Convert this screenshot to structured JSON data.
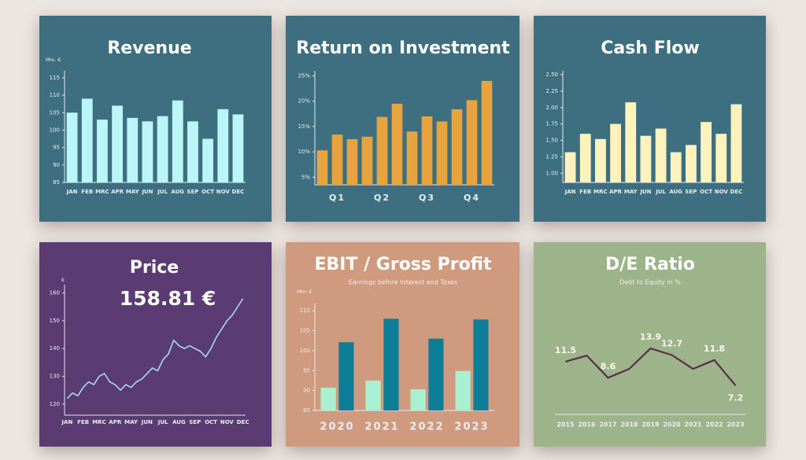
{
  "chart_data": [
    {
      "type": "bar",
      "title": "Revenue",
      "y_label": "Mio. €",
      "color": "#baf5f8",
      "categories": [
        "JAN",
        "FEB",
        "MRC",
        "APR",
        "MAY",
        "JUN",
        "JUL",
        "AUG",
        "SEP",
        "OCT",
        "NOV",
        "DEC"
      ],
      "values": [
        105,
        109,
        103,
        107,
        103.5,
        102.5,
        104,
        108.5,
        102.5,
        97.5,
        106,
        104.5
      ],
      "ylim": [
        85,
        117
      ],
      "yticks": [
        85,
        90,
        95,
        100,
        105,
        110,
        115
      ]
    },
    {
      "type": "bar",
      "title": "Return on Investment",
      "color": "#e6a33e",
      "categories": [
        null,
        "Q1",
        null,
        null,
        "Q2",
        null,
        null,
        "Q3",
        null,
        null,
        "Q4",
        null
      ],
      "values": [
        10.3,
        13.4,
        12.5,
        13,
        16.9,
        19.5,
        14,
        17,
        16,
        18.4,
        20.2,
        24
      ],
      "ylim": [
        3.5,
        26
      ],
      "yticks": [
        {
          "value": 5,
          "label": "5%"
        },
        {
          "value": 10,
          "label": "10%"
        },
        {
          "value": 15,
          "label": "15%"
        },
        {
          "value": 20,
          "label": "20%"
        },
        {
          "value": 25,
          "label": "25%"
        }
      ]
    },
    {
      "type": "bar",
      "title": "Cash Flow",
      "color": "#fff2bd",
      "categories": [
        "JAN",
        "FEB",
        "MRC",
        "APR",
        "MAY",
        "JUN",
        "JUL",
        "AUG",
        "SEP",
        "OCT",
        "NOV",
        "DEC"
      ],
      "values": [
        1.32,
        1.6,
        1.52,
        1.75,
        2.08,
        1.57,
        1.68,
        1.32,
        1.43,
        1.78,
        1.6,
        2.05
      ],
      "ylim": [
        0.86,
        2.56
      ],
      "yticks": [
        {
          "value": 1,
          "label": "1.00"
        },
        {
          "value": 1.25,
          "label": "1.25"
        },
        {
          "value": 1.5,
          "label": "1.50"
        },
        {
          "value": 1.75,
          "label": "1.75"
        },
        {
          "value": 2,
          "label": "2.00"
        },
        {
          "value": 2.25,
          "label": "2.25"
        },
        {
          "value": 2.5,
          "label": "2.50"
        }
      ]
    },
    {
      "type": "line",
      "title": "Price",
      "y_label": "€",
      "annotation": "158.81 €",
      "color": "#a9d9f2",
      "categories": [
        "JAN",
        null,
        null,
        "FEB",
        null,
        null,
        "MRC",
        null,
        null,
        "APR",
        null,
        null,
        "MAY",
        null,
        null,
        "JUN",
        null,
        null,
        "JUL",
        null,
        null,
        "AUG",
        null,
        null,
        "SEP",
        null,
        null,
        "OCT",
        null,
        null,
        "NOV",
        null,
        null,
        "DEC"
      ],
      "values": [
        122,
        124,
        123,
        126,
        128,
        127,
        130,
        131,
        128,
        127,
        125,
        127,
        126,
        128,
        129,
        131,
        133,
        132,
        136,
        138,
        143,
        141,
        140,
        141,
        140,
        139,
        137,
        140,
        144,
        147,
        150,
        152,
        155,
        158
      ],
      "ylim": [
        116,
        163
      ],
      "yticks": [
        120,
        130,
        140,
        150,
        160
      ]
    },
    {
      "type": "bar",
      "title": "EBIT / Gross Profit",
      "subtitle": "Earnings before Interest and Taxes",
      "y_label": "Mio. €",
      "categories": [
        "2020",
        "2021",
        "2022",
        "2023"
      ],
      "series": [
        {
          "color": "#a9f0d2",
          "values": [
            90.7,
            92.5,
            90.3,
            94.9
          ]
        },
        {
          "color": "#0e7e98",
          "values": [
            102.1,
            108,
            103,
            107.8
          ]
        }
      ],
      "ylim": [
        85,
        112
      ],
      "yticks": [
        85,
        90,
        95,
        100,
        105,
        110
      ]
    },
    {
      "type": "line",
      "title": "D/E Ratio",
      "subtitle": "Debt to Equity in %",
      "color": "#5b2c4c",
      "categories": [
        "2015",
        "2016",
        "2017",
        "2018",
        "2019",
        "2020",
        "2021",
        "2022",
        "2023"
      ],
      "values": [
        11.5,
        12.6,
        8.6,
        10.2,
        13.9,
        12.7,
        10.2,
        11.8,
        7.2
      ],
      "value_labels": [
        "11.5",
        null,
        "8.6",
        null,
        "13.9",
        "12.7",
        null,
        "11.8",
        "7.2"
      ],
      "ylim": [
        2,
        20
      ]
    }
  ]
}
